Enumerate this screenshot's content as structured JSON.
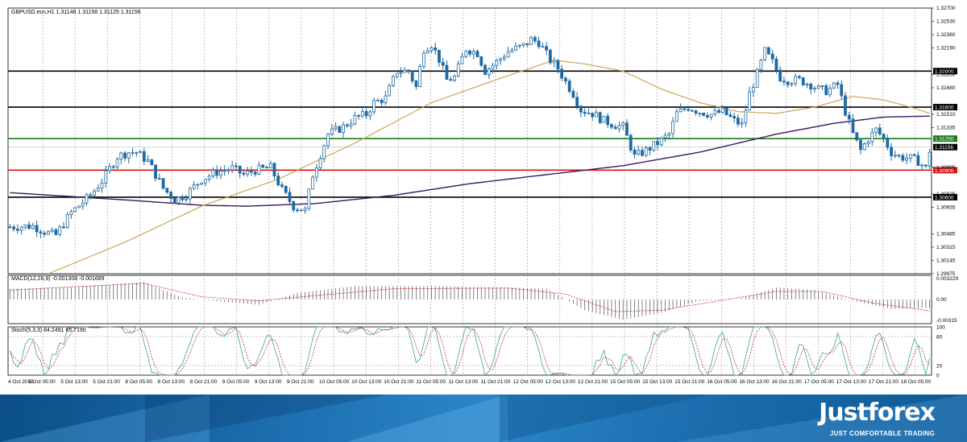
{
  "chart_data": {
    "type": "candlestick",
    "symbol_header": "GBPUSD.ecn,H1  1.31146 1.31158 1.31125 1.31156",
    "price_axis": {
      "range": [
        1.2975,
        1.327
      ],
      "ticks": [
        "1.32700",
        "1.32530",
        "1.32360",
        "1.32190",
        "1.32000",
        "1.31850",
        "1.31680",
        "1.31600",
        "1.31510",
        "1.31335",
        "1.31250",
        "1.31156",
        "1.30995",
        "1.30900",
        "1.30825",
        "1.30655",
        "1.30600",
        "1.30485",
        "1.30315",
        "1.30145",
        "1.29975"
      ]
    },
    "time_axis": {
      "labels": [
        "4 Oct 2018",
        "5 Oct 05:00",
        "5 Oct 13:00",
        "5 Oct 21:00",
        "8 Oct 05:00",
        "8 Oct 13:00",
        "8 Oct 21:00",
        "9 Oct 05:00",
        "9 Oct 13:00",
        "9 Oct 21:00",
        "10 Oct 05:00",
        "10 Oct 13:00",
        "10 Oct 21:00",
        "11 Oct 05:00",
        "11 Oct 13:00",
        "11 Oct 21:00",
        "12 Oct 05:00",
        "12 Oct 13:00",
        "12 Oct 21:00",
        "15 Oct 05:00",
        "15 Oct 13:00",
        "15 Oct 21:00",
        "16 Oct 05:00",
        "16 Oct 13:00",
        "16 Oct 21:00",
        "17 Oct 05:00",
        "17 Oct 13:00",
        "17 Oct 21:00",
        "18 Oct 05:00"
      ]
    },
    "levels": [
      {
        "price": 1.32,
        "label": "1.32000",
        "color": "#000000"
      },
      {
        "price": 1.316,
        "label": "1.31600",
        "color": "#000000"
      },
      {
        "price": 1.3125,
        "label": "1.31250",
        "color": "#1e7b1e"
      },
      {
        "price": 1.309,
        "label": "1.30900",
        "color": "#e01010"
      },
      {
        "price": 1.306,
        "label": "1.30600",
        "color": "#000000"
      }
    ],
    "current_price": {
      "price": 1.31156,
      "label": "1.31156"
    },
    "price_keys": [
      [
        0,
        1.3027
      ],
      [
        6,
        1.3028
      ],
      [
        10,
        1.302
      ],
      [
        12,
        1.3018
      ],
      [
        16,
        1.3043
      ],
      [
        21,
        1.3062
      ],
      [
        24,
        1.3078
      ],
      [
        28,
        1.3105
      ],
      [
        31,
        1.311
      ],
      [
        33,
        1.311
      ],
      [
        36,
        1.31
      ],
      [
        40,
        1.307
      ],
      [
        43,
        1.3057
      ],
      [
        46,
        1.3063
      ],
      [
        50,
        1.308
      ],
      [
        54,
        1.3088
      ],
      [
        58,
        1.3092
      ],
      [
        61,
        1.3085
      ],
      [
        64,
        1.309
      ],
      [
        68,
        1.3093
      ],
      [
        71,
        1.3068
      ],
      [
        74,
        1.305
      ],
      [
        77,
        1.3045
      ],
      [
        79,
        1.3085
      ],
      [
        83,
        1.313
      ],
      [
        87,
        1.3138
      ],
      [
        90,
        1.3148
      ],
      [
        93,
        1.3152
      ],
      [
        95,
        1.3165
      ],
      [
        98,
        1.317
      ],
      [
        101,
        1.32
      ],
      [
        104,
        1.32
      ],
      [
        106,
        1.3182
      ],
      [
        108,
        1.3225
      ],
      [
        110,
        1.323
      ],
      [
        112,
        1.3213
      ],
      [
        114,
        1.319
      ],
      [
        116,
        1.3193
      ],
      [
        119,
        1.3225
      ],
      [
        122,
        1.322
      ],
      [
        124,
        1.32
      ],
      [
        127,
        1.321
      ],
      [
        130,
        1.3222
      ],
      [
        134,
        1.3228
      ],
      [
        136,
        1.3235
      ],
      [
        138,
        1.3232
      ],
      [
        141,
        1.3212
      ],
      [
        143,
        1.3203
      ],
      [
        145,
        1.3188
      ],
      [
        147,
        1.3175
      ],
      [
        149,
        1.3157
      ],
      [
        152,
        1.3153
      ],
      [
        155,
        1.3145
      ],
      [
        158,
        1.314
      ],
      [
        160,
        1.3138
      ],
      [
        163,
        1.3105
      ],
      [
        166,
        1.3112
      ],
      [
        169,
        1.312
      ],
      [
        172,
        1.313
      ],
      [
        174,
        1.3153
      ],
      [
        177,
        1.316
      ],
      [
        180,
        1.3155
      ],
      [
        183,
        1.3152
      ],
      [
        186,
        1.3155
      ],
      [
        189,
        1.3145
      ],
      [
        191,
        1.314
      ],
      [
        193,
        1.3175
      ],
      [
        195,
        1.3197
      ],
      [
        197,
        1.3222
      ],
      [
        199,
        1.321
      ],
      [
        201,
        1.3193
      ],
      [
        203,
        1.319
      ],
      [
        206,
        1.319
      ],
      [
        209,
        1.3185
      ],
      [
        211,
        1.318
      ],
      [
        213,
        1.3178
      ],
      [
        216,
        1.3185
      ],
      [
        218,
        1.3155
      ],
      [
        220,
        1.313
      ],
      [
        222,
        1.3112
      ],
      [
        224,
        1.3125
      ],
      [
        226,
        1.3135
      ],
      [
        228,
        1.3125
      ],
      [
        230,
        1.311
      ],
      [
        232,
        1.3105
      ],
      [
        235,
        1.3103
      ],
      [
        237,
        1.31
      ],
      [
        239,
        1.3092
      ],
      [
        240,
        1.3112
      ]
    ],
    "ma_slow": {
      "color": "#3a1a5e",
      "keys": [
        [
          0,
          1.3065
        ],
        [
          30,
          1.3057
        ],
        [
          50,
          1.3051
        ],
        [
          62,
          1.305
        ],
        [
          80,
          1.3053
        ],
        [
          100,
          1.3062
        ],
        [
          120,
          1.3075
        ],
        [
          140,
          1.3085
        ],
        [
          160,
          1.3095
        ],
        [
          180,
          1.311
        ],
        [
          200,
          1.313
        ],
        [
          215,
          1.3142
        ],
        [
          228,
          1.3149
        ],
        [
          240,
          1.315
        ]
      ]
    },
    "ma_fast": {
      "color": "#c8a850",
      "keys": [
        [
          10,
          1.2975
        ],
        [
          30,
          1.301
        ],
        [
          50,
          1.305
        ],
        [
          70,
          1.308
        ],
        [
          90,
          1.312
        ],
        [
          110,
          1.3165
        ],
        [
          130,
          1.3195
        ],
        [
          142,
          1.3212
        ],
        [
          150,
          1.3208
        ],
        [
          160,
          1.32
        ],
        [
          170,
          1.318
        ],
        [
          180,
          1.3165
        ],
        [
          190,
          1.3155
        ],
        [
          200,
          1.3153
        ],
        [
          210,
          1.316
        ],
        [
          220,
          1.3172
        ],
        [
          228,
          1.3168
        ],
        [
          235,
          1.316
        ],
        [
          240,
          1.3153
        ]
      ]
    },
    "macd": {
      "header": "MACD(12,26,9) -0.001308 -0.001689",
      "ticks": [
        "0.003229",
        "0.00",
        "-0.00315"
      ],
      "range": [
        -0.0036,
        0.0036
      ],
      "hist_keys": [
        [
          0,
          0.0016
        ],
        [
          15,
          0.0018
        ],
        [
          25,
          0.0022
        ],
        [
          35,
          0.0026
        ],
        [
          45,
          0.0003
        ],
        [
          55,
          -0.0003
        ],
        [
          65,
          -0.0008
        ],
        [
          75,
          0.001
        ],
        [
          90,
          0.002
        ],
        [
          110,
          0.002
        ],
        [
          130,
          0.0018
        ],
        [
          140,
          0.0016
        ],
        [
          150,
          -0.0016
        ],
        [
          160,
          -0.003
        ],
        [
          170,
          -0.002
        ],
        [
          180,
          -0.0002
        ],
        [
          190,
          0.0
        ],
        [
          200,
          0.0018
        ],
        [
          210,
          0.0014
        ],
        [
          220,
          -0.0002
        ],
        [
          230,
          -0.0014
        ],
        [
          240,
          -0.0013
        ]
      ],
      "signal_keys": [
        [
          0,
          0.0014
        ],
        [
          20,
          0.002
        ],
        [
          35,
          0.0024
        ],
        [
          50,
          0.0004
        ],
        [
          65,
          -0.0002
        ],
        [
          80,
          0.0006
        ],
        [
          100,
          0.0016
        ],
        [
          130,
          0.0017
        ],
        [
          145,
          0.0008
        ],
        [
          158,
          -0.0018
        ],
        [
          170,
          -0.0016
        ],
        [
          185,
          -0.0002
        ],
        [
          200,
          0.0012
        ],
        [
          212,
          0.0012
        ],
        [
          225,
          -0.0005
        ],
        [
          240,
          -0.0017
        ]
      ]
    },
    "stoch": {
      "header": "Stoch(5,3,3) 84.2491 65.7190",
      "ticks": [
        "100",
        "80",
        "20",
        "0"
      ],
      "range": [
        0,
        100
      ]
    }
  }
}
